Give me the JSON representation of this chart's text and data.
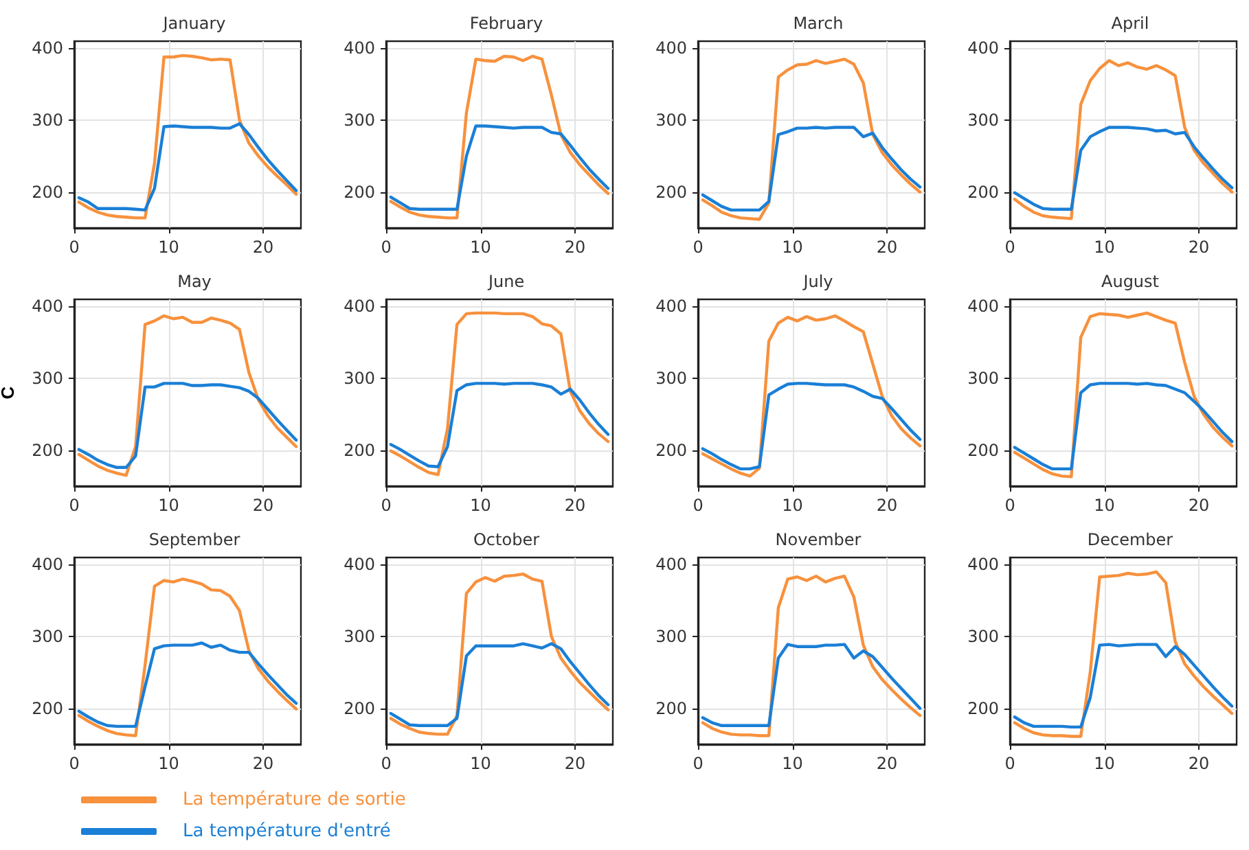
{
  "chart_data": [
    {
      "type": "line",
      "title": "January",
      "x": [
        0.5,
        1.5,
        2.5,
        3.5,
        4.5,
        5.5,
        6.5,
        7.5,
        8.5,
        9.5,
        10.5,
        11.5,
        12.5,
        13.5,
        14.5,
        15.5,
        16.5,
        17.5,
        18.5,
        19.5,
        20.5,
        21.5,
        22.5,
        23.5
      ],
      "xlim": [
        0,
        24
      ],
      "xticks": [
        0,
        10,
        20
      ],
      "ylim": [
        150,
        410
      ],
      "yticks": [
        200,
        300,
        400
      ],
      "grid": true,
      "series": [
        {
          "color": "#f7913d",
          "values": [
            186,
            178,
            172,
            168,
            166,
            165,
            164,
            164,
            240,
            388,
            388,
            390,
            389,
            387,
            384,
            385,
            384,
            300,
            268,
            250,
            235,
            222,
            210,
            197
          ]
        },
        {
          "color": "#1a7fd6",
          "values": [
            192,
            186,
            177,
            177,
            177,
            177,
            176,
            175,
            205,
            291,
            292,
            291,
            290,
            290,
            290,
            289,
            289,
            295,
            280,
            262,
            245,
            230,
            216,
            202
          ]
        }
      ]
    },
    {
      "type": "line",
      "title": "February",
      "x": [
        0.5,
        1.5,
        2.5,
        3.5,
        4.5,
        5.5,
        6.5,
        7.5,
        8.5,
        9.5,
        10.5,
        11.5,
        12.5,
        13.5,
        14.5,
        15.5,
        16.5,
        17.5,
        18.5,
        19.5,
        20.5,
        21.5,
        22.5,
        23.5
      ],
      "xlim": [
        0,
        24
      ],
      "xticks": [
        0,
        10,
        20
      ],
      "ylim": [
        150,
        410
      ],
      "yticks": [
        200,
        300,
        400
      ],
      "grid": true,
      "series": [
        {
          "color": "#f7913d",
          "values": [
            187,
            179,
            172,
            168,
            166,
            165,
            164,
            164,
            310,
            385,
            383,
            382,
            389,
            388,
            383,
            389,
            385,
            335,
            280,
            255,
            238,
            224,
            210,
            198
          ]
        },
        {
          "color": "#1a7fd6",
          "values": [
            193,
            185,
            177,
            176,
            176,
            176,
            176,
            176,
            250,
            292,
            292,
            291,
            290,
            289,
            290,
            290,
            290,
            283,
            281,
            265,
            248,
            232,
            218,
            205
          ]
        }
      ]
    },
    {
      "type": "line",
      "title": "March",
      "x": [
        0.5,
        1.5,
        2.5,
        3.5,
        4.5,
        5.5,
        6.5,
        7.5,
        8.5,
        9.5,
        10.5,
        11.5,
        12.5,
        13.5,
        14.5,
        15.5,
        16.5,
        17.5,
        18.5,
        19.5,
        20.5,
        21.5,
        22.5,
        23.5
      ],
      "xlim": [
        0,
        24
      ],
      "xticks": [
        0,
        10,
        20
      ],
      "ylim": [
        150,
        410
      ],
      "yticks": [
        200,
        300,
        400
      ],
      "grid": true,
      "series": [
        {
          "color": "#f7913d",
          "values": [
            189,
            181,
            172,
            167,
            164,
            163,
            162,
            185,
            360,
            370,
            377,
            378,
            383,
            379,
            382,
            385,
            378,
            352,
            280,
            255,
            238,
            224,
            211,
            200
          ]
        },
        {
          "color": "#1a7fd6",
          "values": [
            196,
            188,
            180,
            175,
            175,
            175,
            175,
            187,
            280,
            284,
            289,
            289,
            290,
            289,
            290,
            290,
            290,
            277,
            282,
            262,
            246,
            231,
            218,
            207
          ]
        }
      ]
    },
    {
      "type": "line",
      "title": "April",
      "x": [
        0.5,
        1.5,
        2.5,
        3.5,
        4.5,
        5.5,
        6.5,
        7.5,
        8.5,
        9.5,
        10.5,
        11.5,
        12.5,
        13.5,
        14.5,
        15.5,
        16.5,
        17.5,
        18.5,
        19.5,
        20.5,
        21.5,
        22.5,
        23.5
      ],
      "xlim": [
        0,
        24
      ],
      "xticks": [
        0,
        10,
        20
      ],
      "ylim": [
        150,
        410
      ],
      "yticks": [
        200,
        300,
        400
      ],
      "grid": true,
      "series": [
        {
          "color": "#f7913d",
          "values": [
            190,
            180,
            172,
            167,
            165,
            164,
            163,
            322,
            355,
            372,
            383,
            376,
            380,
            374,
            371,
            376,
            370,
            362,
            290,
            258,
            240,
            226,
            212,
            200
          ]
        },
        {
          "color": "#1a7fd6",
          "values": [
            199,
            191,
            183,
            177,
            176,
            176,
            176,
            258,
            277,
            284,
            290,
            290,
            290,
            289,
            288,
            285,
            286,
            281,
            283,
            263,
            247,
            232,
            218,
            206
          ]
        }
      ]
    },
    {
      "type": "line",
      "title": "May",
      "ylabel": "C",
      "x": [
        0.5,
        1.5,
        2.5,
        3.5,
        4.5,
        5.5,
        6.5,
        7.5,
        8.5,
        9.5,
        10.5,
        11.5,
        12.5,
        13.5,
        14.5,
        15.5,
        16.5,
        17.5,
        18.5,
        19.5,
        20.5,
        21.5,
        22.5,
        23.5
      ],
      "xlim": [
        0,
        24
      ],
      "xticks": [
        0,
        10,
        20
      ],
      "ylim": [
        150,
        410
      ],
      "yticks": [
        200,
        300,
        400
      ],
      "grid": true,
      "series": [
        {
          "color": "#f7913d",
          "values": [
            194,
            186,
            178,
            172,
            168,
            165,
            205,
            375,
            380,
            387,
            383,
            385,
            378,
            378,
            384,
            381,
            377,
            368,
            308,
            270,
            248,
            231,
            218,
            205
          ]
        },
        {
          "color": "#1a7fd6",
          "values": [
            201,
            194,
            186,
            180,
            176,
            176,
            192,
            288,
            288,
            293,
            293,
            293,
            290,
            290,
            291,
            291,
            289,
            287,
            282,
            272,
            257,
            242,
            228,
            214
          ]
        }
      ]
    },
    {
      "type": "line",
      "title": "June",
      "x": [
        0.5,
        1.5,
        2.5,
        3.5,
        4.5,
        5.5,
        6.5,
        7.5,
        8.5,
        9.5,
        10.5,
        11.5,
        12.5,
        13.5,
        14.5,
        15.5,
        16.5,
        17.5,
        18.5,
        19.5,
        20.5,
        21.5,
        22.5,
        23.5
      ],
      "xlim": [
        0,
        24
      ],
      "xticks": [
        0,
        10,
        20
      ],
      "ylim": [
        150,
        410
      ],
      "yticks": [
        200,
        300,
        400
      ],
      "grid": true,
      "series": [
        {
          "color": "#f7913d",
          "values": [
            199,
            192,
            184,
            176,
            169,
            166,
            230,
            375,
            390,
            391,
            391,
            391,
            390,
            390,
            390,
            386,
            376,
            373,
            362,
            282,
            255,
            237,
            223,
            212
          ]
        },
        {
          "color": "#1a7fd6",
          "values": [
            208,
            201,
            193,
            185,
            178,
            177,
            205,
            283,
            291,
            293,
            293,
            293,
            292,
            293,
            293,
            293,
            291,
            288,
            278,
            285,
            270,
            252,
            236,
            222
          ]
        }
      ]
    },
    {
      "type": "line",
      "title": "July",
      "x": [
        0.5,
        1.5,
        2.5,
        3.5,
        4.5,
        5.5,
        6.5,
        7.5,
        8.5,
        9.5,
        10.5,
        11.5,
        12.5,
        13.5,
        14.5,
        15.5,
        16.5,
        17.5,
        18.5,
        19.5,
        20.5,
        21.5,
        22.5,
        23.5
      ],
      "xlim": [
        0,
        24
      ],
      "xticks": [
        0,
        10,
        20
      ],
      "ylim": [
        150,
        410
      ],
      "yticks": [
        200,
        300,
        400
      ],
      "grid": true,
      "series": [
        {
          "color": "#f7913d",
          "values": [
            195,
            188,
            181,
            174,
            168,
            164,
            175,
            352,
            377,
            385,
            380,
            386,
            381,
            383,
            387,
            380,
            372,
            365,
            320,
            275,
            248,
            230,
            217,
            206
          ]
        },
        {
          "color": "#1a7fd6",
          "values": [
            202,
            195,
            187,
            180,
            174,
            174,
            177,
            277,
            285,
            292,
            293,
            293,
            292,
            291,
            291,
            291,
            288,
            282,
            275,
            272,
            258,
            243,
            228,
            215
          ]
        }
      ]
    },
    {
      "type": "line",
      "title": "August",
      "x": [
        0.5,
        1.5,
        2.5,
        3.5,
        4.5,
        5.5,
        6.5,
        7.5,
        8.5,
        9.5,
        10.5,
        11.5,
        12.5,
        13.5,
        14.5,
        15.5,
        16.5,
        17.5,
        18.5,
        19.5,
        20.5,
        21.5,
        22.5,
        23.5
      ],
      "xlim": [
        0,
        24
      ],
      "xticks": [
        0,
        10,
        20
      ],
      "ylim": [
        150,
        410
      ],
      "yticks": [
        200,
        300,
        400
      ],
      "grid": true,
      "series": [
        {
          "color": "#f7913d",
          "values": [
            197,
            189,
            181,
            173,
            167,
            164,
            163,
            357,
            386,
            390,
            389,
            388,
            385,
            388,
            391,
            386,
            381,
            377,
            322,
            275,
            250,
            232,
            218,
            206
          ]
        },
        {
          "color": "#1a7fd6",
          "values": [
            204,
            196,
            188,
            180,
            174,
            174,
            174,
            280,
            291,
            293,
            293,
            293,
            293,
            292,
            293,
            291,
            290,
            285,
            280,
            268,
            255,
            240,
            225,
            212
          ]
        }
      ]
    },
    {
      "type": "line",
      "title": "September",
      "x": [
        0.5,
        1.5,
        2.5,
        3.5,
        4.5,
        5.5,
        6.5,
        7.5,
        8.5,
        9.5,
        10.5,
        11.5,
        12.5,
        13.5,
        14.5,
        15.5,
        16.5,
        17.5,
        18.5,
        19.5,
        20.5,
        21.5,
        22.5,
        23.5
      ],
      "xlim": [
        0,
        24
      ],
      "xticks": [
        0,
        10,
        20
      ],
      "ylim": [
        150,
        410
      ],
      "yticks": [
        200,
        300,
        400
      ],
      "grid": true,
      "legend": "bottom",
      "series": [
        {
          "name": "La température de sortie",
          "color": "#f7913d",
          "values": [
            190,
            182,
            175,
            169,
            165,
            163,
            162,
            260,
            370,
            378,
            376,
            380,
            377,
            373,
            365,
            364,
            356,
            336,
            280,
            255,
            238,
            224,
            211,
            199
          ]
        },
        {
          "name": "La température d'entré",
          "color": "#1a7fd6",
          "values": [
            196,
            188,
            181,
            176,
            175,
            175,
            175,
            230,
            283,
            287,
            288,
            288,
            288,
            291,
            285,
            288,
            281,
            278,
            278,
            262,
            247,
            233,
            219,
            207
          ]
        }
      ]
    },
    {
      "type": "line",
      "title": "October",
      "x": [
        0.5,
        1.5,
        2.5,
        3.5,
        4.5,
        5.5,
        6.5,
        7.5,
        8.5,
        9.5,
        10.5,
        11.5,
        12.5,
        13.5,
        14.5,
        15.5,
        16.5,
        17.5,
        18.5,
        19.5,
        20.5,
        21.5,
        22.5,
        23.5
      ],
      "xlim": [
        0,
        24
      ],
      "xticks": [
        0,
        10,
        20
      ],
      "ylim": [
        150,
        410
      ],
      "yticks": [
        200,
        300,
        400
      ],
      "grid": true,
      "series": [
        {
          "color": "#f7913d",
          "values": [
            186,
            178,
            172,
            167,
            165,
            164,
            164,
            190,
            360,
            376,
            382,
            377,
            384,
            385,
            387,
            380,
            377,
            300,
            270,
            252,
            236,
            223,
            210,
            198
          ]
        },
        {
          "color": "#1a7fd6",
          "values": [
            193,
            185,
            177,
            176,
            176,
            176,
            176,
            186,
            273,
            287,
            287,
            287,
            287,
            287,
            290,
            287,
            284,
            290,
            283,
            265,
            249,
            233,
            218,
            205
          ]
        }
      ]
    },
    {
      "type": "line",
      "title": "November",
      "x": [
        0.5,
        1.5,
        2.5,
        3.5,
        4.5,
        5.5,
        6.5,
        7.5,
        8.5,
        9.5,
        10.5,
        11.5,
        12.5,
        13.5,
        14.5,
        15.5,
        16.5,
        17.5,
        18.5,
        19.5,
        20.5,
        21.5,
        22.5,
        23.5
      ],
      "xlim": [
        0,
        24
      ],
      "xticks": [
        0,
        10,
        20
      ],
      "ylim": [
        150,
        410
      ],
      "yticks": [
        200,
        300,
        400
      ],
      "grid": true,
      "series": [
        {
          "color": "#f7913d",
          "values": [
            180,
            172,
            167,
            164,
            163,
            163,
            162,
            162,
            340,
            380,
            383,
            378,
            384,
            376,
            381,
            384,
            355,
            288,
            258,
            240,
            226,
            213,
            201,
            190
          ]
        },
        {
          "color": "#1a7fd6",
          "values": [
            187,
            180,
            176,
            176,
            176,
            176,
            176,
            176,
            270,
            289,
            286,
            286,
            286,
            288,
            288,
            289,
            270,
            280,
            272,
            257,
            242,
            228,
            214,
            200
          ]
        }
      ]
    },
    {
      "type": "line",
      "title": "December",
      "x": [
        0.5,
        1.5,
        2.5,
        3.5,
        4.5,
        5.5,
        6.5,
        7.5,
        8.5,
        9.5,
        10.5,
        11.5,
        12.5,
        13.5,
        14.5,
        15.5,
        16.5,
        17.5,
        18.5,
        19.5,
        20.5,
        21.5,
        22.5,
        23.5
      ],
      "xlim": [
        0,
        24
      ],
      "xticks": [
        0,
        10,
        20
      ],
      "ylim": [
        150,
        410
      ],
      "yticks": [
        200,
        300,
        400
      ],
      "grid": true,
      "series": [
        {
          "color": "#f7913d",
          "values": [
            180,
            172,
            166,
            163,
            162,
            162,
            161,
            161,
            250,
            383,
            384,
            385,
            388,
            386,
            387,
            390,
            375,
            293,
            262,
            245,
            230,
            217,
            205,
            193
          ]
        },
        {
          "color": "#1a7fd6",
          "values": [
            188,
            180,
            175,
            175,
            175,
            175,
            174,
            174,
            215,
            288,
            289,
            287,
            288,
            289,
            289,
            289,
            272,
            286,
            275,
            260,
            245,
            230,
            216,
            203
          ]
        }
      ]
    }
  ]
}
